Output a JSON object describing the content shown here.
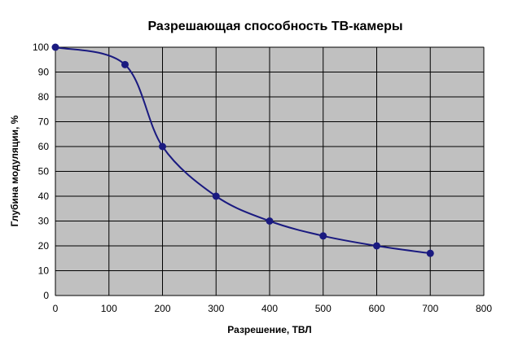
{
  "chart_data": {
    "type": "line",
    "title": "Разрешающая способность ТВ-камеры",
    "xlabel": "Разрешение, ТВЛ",
    "ylabel": "Глубина модуляции, %",
    "xlim": [
      0,
      800
    ],
    "ylim": [
      0,
      100
    ],
    "xticks": [
      0,
      100,
      200,
      300,
      400,
      500,
      600,
      700,
      800
    ],
    "yticks": [
      0,
      10,
      20,
      30,
      40,
      50,
      60,
      70,
      80,
      90,
      100
    ],
    "grid": true,
    "smooth": true,
    "series": [
      {
        "x": [
          0,
          130,
          200,
          300,
          400,
          500,
          600,
          700
        ],
        "y": [
          100,
          93,
          60,
          40,
          30,
          24,
          20,
          17
        ]
      }
    ],
    "colors": {
      "plot_background": "#c0c0c0",
      "grid": "#000000",
      "line": "#1a1a80",
      "marker": "#1a1a80"
    }
  }
}
